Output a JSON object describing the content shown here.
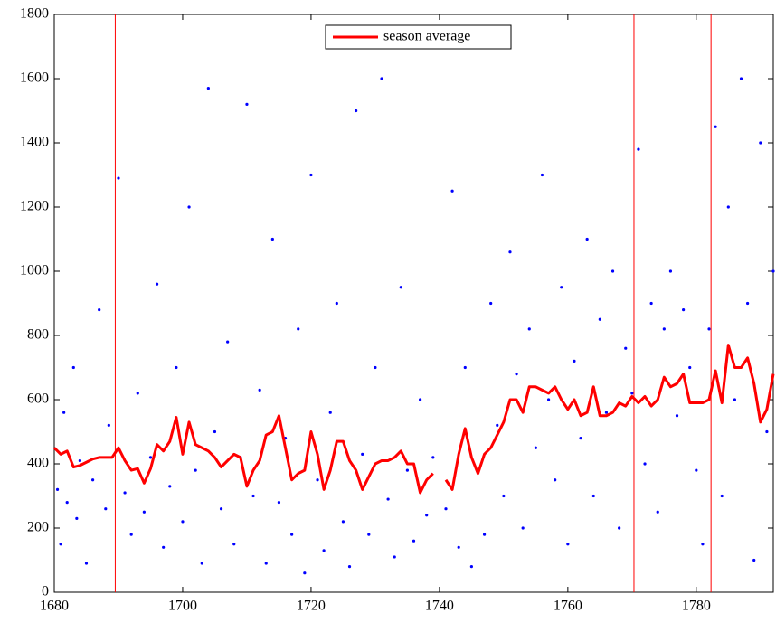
{
  "chart_data": {
    "type": "scatter",
    "xlim": [
      1680,
      1792
    ],
    "ylim": [
      0,
      1800
    ],
    "xticks": [
      1680,
      1700,
      1720,
      1740,
      1760,
      1780
    ],
    "yticks": [
      0,
      200,
      400,
      600,
      800,
      1000,
      1200,
      1400,
      1600,
      1800
    ],
    "vlines": [
      1689.5,
      1770.3,
      1782.3
    ],
    "vline_color": "#ff0000",
    "legend": "top-center",
    "series": [
      {
        "type": "scatter",
        "color": "#0000ff",
        "x": [
          1680.5,
          1681,
          1681.5,
          1682,
          1683,
          1683.5,
          1684,
          1685,
          1686,
          1687,
          1688,
          1688.5,
          1690,
          1691,
          1692,
          1693,
          1694,
          1695,
          1696,
          1697,
          1698,
          1699,
          1700,
          1701,
          1702,
          1703,
          1704,
          1705,
          1706,
          1707,
          1708,
          1709,
          1710,
          1711,
          1712,
          1713,
          1714,
          1715,
          1716,
          1717,
          1718,
          1719,
          1720,
          1721,
          1722,
          1723,
          1724,
          1725,
          1726,
          1727,
          1728,
          1729,
          1730,
          1731,
          1732,
          1733,
          1734,
          1735,
          1736,
          1737,
          1738,
          1739,
          1741,
          1742,
          1743,
          1744,
          1745,
          1746,
          1747,
          1748,
          1749,
          1750,
          1751,
          1752,
          1753,
          1754,
          1755,
          1756,
          1757,
          1758,
          1759,
          1760,
          1761,
          1762,
          1763,
          1764,
          1765,
          1766,
          1767,
          1768,
          1769,
          1770,
          1771,
          1772,
          1773,
          1774,
          1775,
          1776,
          1777,
          1778,
          1779,
          1780,
          1781,
          1782,
          1783,
          1784,
          1785,
          1786,
          1787,
          1788,
          1789,
          1790,
          1791,
          1792
        ],
        "values": [
          320,
          150,
          560,
          280,
          700,
          230,
          410,
          90,
          350,
          880,
          260,
          520,
          1290,
          310,
          180,
          620,
          250,
          420,
          960,
          140,
          330,
          700,
          220,
          1200,
          380,
          90,
          1570,
          500,
          260,
          780,
          150,
          420,
          1520,
          300,
          630,
          90,
          1100,
          280,
          480,
          180,
          820,
          60,
          1300,
          350,
          130,
          560,
          900,
          220,
          80,
          1500,
          430,
          180,
          700,
          1600,
          290,
          110,
          950,
          380,
          160,
          600,
          240,
          420,
          260,
          1250,
          140,
          700,
          80,
          380,
          180,
          900,
          520,
          300,
          1060,
          680,
          200,
          820,
          450,
          1300,
          600,
          350,
          950,
          150,
          720,
          480,
          1100,
          300,
          850,
          560,
          1000,
          200,
          760,
          620,
          1380,
          400,
          900,
          250,
          820,
          1000,
          550,
          880,
          700,
          380,
          150,
          820,
          1450,
          300,
          1200,
          600,
          1600,
          900,
          100,
          1400,
          500,
          1000
        ]
      },
      {
        "type": "line",
        "name": "season average",
        "color": "#ff0000",
        "x": [
          1680,
          1681,
          1682,
          1683,
          1684,
          1685,
          1686,
          1687,
          1688,
          1689,
          1690,
          1691,
          1692,
          1693,
          1694,
          1695,
          1696,
          1697,
          1698,
          1699,
          1700,
          1701,
          1702,
          1703,
          1704,
          1705,
          1706,
          1707,
          1708,
          1709,
          1710,
          1711,
          1712,
          1713,
          1714,
          1715,
          1716,
          1717,
          1718,
          1719,
          1720,
          1721,
          1722,
          1723,
          1724,
          1725,
          1726,
          1727,
          1728,
          1729,
          1730,
          1731,
          1732,
          1733,
          1734,
          1735,
          1736,
          1737,
          1738,
          1739,
          1740,
          1741,
          1742,
          1743,
          1744,
          1745,
          1746,
          1747,
          1748,
          1749,
          1750,
          1751,
          1752,
          1753,
          1754,
          1755,
          1756,
          1757,
          1758,
          1759,
          1760,
          1761,
          1762,
          1763,
          1764,
          1765,
          1766,
          1767,
          1768,
          1769,
          1770,
          1771,
          1772,
          1773,
          1774,
          1775,
          1776,
          1777,
          1778,
          1779,
          1780,
          1781,
          1782,
          1783,
          1784,
          1785,
          1786,
          1787,
          1788,
          1789,
          1790,
          1791,
          1792
        ],
        "values": [
          450,
          430,
          440,
          390,
          395,
          405,
          415,
          420,
          420,
          420,
          450,
          410,
          380,
          385,
          340,
          385,
          460,
          440,
          470,
          545,
          430,
          530,
          460,
          450,
          440,
          420,
          390,
          410,
          430,
          420,
          330,
          380,
          410,
          490,
          500,
          550,
          450,
          350,
          370,
          380,
          500,
          430,
          320,
          380,
          470,
          470,
          410,
          380,
          320,
          360,
          400,
          410,
          410,
          420,
          440,
          400,
          400,
          310,
          350,
          370,
          null,
          350,
          320,
          430,
          510,
          420,
          370,
          430,
          450,
          490,
          530,
          600,
          600,
          560,
          640,
          640,
          630,
          620,
          640,
          600,
          570,
          600,
          550,
          560,
          640,
          550,
          550,
          560,
          590,
          580,
          610,
          590,
          610,
          580,
          600,
          670,
          640,
          650,
          680,
          590,
          590,
          590,
          600,
          690,
          590,
          770,
          700,
          700,
          730,
          650,
          530,
          570,
          680
        ]
      }
    ]
  }
}
